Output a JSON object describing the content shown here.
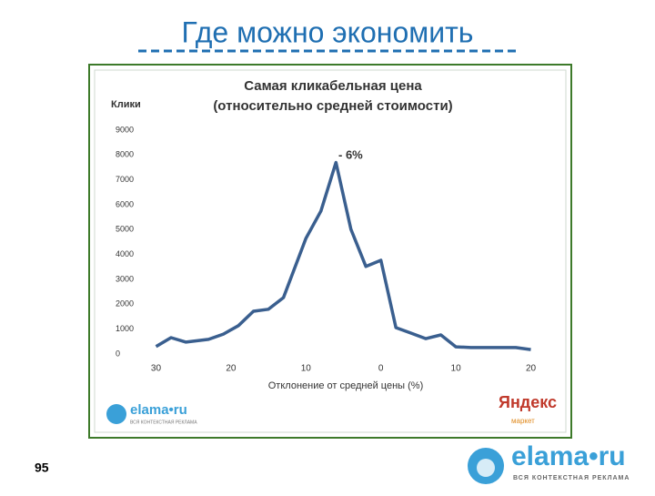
{
  "slide_title": "Где можно экономить",
  "page_number": "95",
  "logo": {
    "name": "elama•ru",
    "tagline": "ВСЯ КОНТЕКСТНАЯ РЕКЛАМА"
  },
  "chart_data": {
    "type": "line",
    "title": "Самая кликабельная цена",
    "subtitle": "(относительно средней стоимости)",
    "y_label": "Клики",
    "x_label": "Отклонение от средней цены (%)",
    "annotation": "- 6%",
    "logo_small": {
      "name": "elama•ru",
      "tagline": "ВСЯ КОНТЕКСТНАЯ РЕКЛАМА"
    },
    "yandex": {
      "name": "Яндекс",
      "sub": "маркет"
    },
    "x": [
      -30,
      -28,
      -26,
      -23,
      -21,
      -19,
      -17,
      -15,
      -13,
      -10,
      -8,
      -6,
      -4,
      -2,
      0,
      2,
      4,
      6,
      8,
      10,
      12,
      18,
      20
    ],
    "values": [
      300,
      660,
      480,
      590,
      800,
      1140,
      1720,
      1800,
      2270,
      4650,
      5750,
      7700,
      5020,
      3520,
      3770,
      1060,
      840,
      620,
      770,
      290,
      260,
      260,
      180
    ],
    "color": "#3a5f8f",
    "xlim": [
      -32,
      22
    ],
    "xticks": [
      {
        "value": -30,
        "label": "30"
      },
      {
        "value": -20,
        "label": "20"
      },
      {
        "value": -10,
        "label": "10"
      },
      0,
      {
        "value": 10,
        "label": "10"
      },
      20
    ],
    "ylim": [
      0,
      9000
    ],
    "yticks": [
      0,
      1000,
      2000,
      3000,
      4000,
      5000,
      6000,
      7000,
      8000,
      9000
    ],
    "grid": false
  }
}
